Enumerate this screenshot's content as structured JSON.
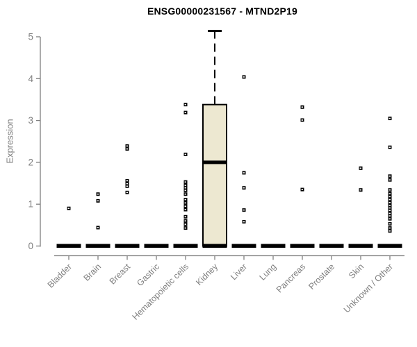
{
  "header": {
    "title": "ENSG00000231567 - MTND2P19"
  },
  "chart_data": {
    "type": "boxplot",
    "title": "ENSG00000231567 - MTND2P19",
    "xlabel": "",
    "ylabel": "Expression",
    "ylim": [
      0,
      5.2
    ],
    "yticks": [
      0,
      1,
      2,
      3,
      4,
      5
    ],
    "grid": false,
    "legend": "none",
    "categories": [
      "Bladder",
      "Brain",
      "Breast",
      "Gastric",
      "Hematopoietic cells",
      "Kidney",
      "Liver",
      "Lung",
      "Pancreas",
      "Prostate",
      "Skin",
      "Unknown / Other"
    ],
    "boxes": [
      {
        "category": "Bladder",
        "q1": 0,
        "median": 0,
        "q3": 0,
        "whisker_low": 0,
        "whisker_high": 0,
        "points": [
          0.9
        ]
      },
      {
        "category": "Brain",
        "q1": 0,
        "median": 0,
        "q3": 0,
        "whisker_low": 0,
        "whisker_high": 0,
        "points": [
          1.24,
          1.08,
          0.44
        ]
      },
      {
        "category": "Breast",
        "q1": 0,
        "median": 0,
        "q3": 0,
        "whisker_low": 0,
        "whisker_high": 0,
        "points": [
          2.39,
          2.32,
          1.56,
          1.49,
          1.43,
          1.28
        ]
      },
      {
        "category": "Gastric",
        "q1": 0,
        "median": 0,
        "q3": 0,
        "whisker_low": 0,
        "whisker_high": 0,
        "points": []
      },
      {
        "category": "Hematopoietic cells",
        "q1": 0,
        "median": 0,
        "q3": 0,
        "whisker_low": 0,
        "whisker_high": 0,
        "points": [
          3.38,
          3.19,
          2.19,
          1.53,
          1.45,
          1.39,
          1.33,
          1.24,
          1.11,
          1.03,
          0.95,
          0.87,
          0.7,
          0.6,
          0.52,
          0.43
        ]
      },
      {
        "category": "Kidney",
        "q1": 0,
        "median": 2.0,
        "q3": 3.38,
        "whisker_low": 0,
        "whisker_high": 5.14,
        "points": []
      },
      {
        "category": "Liver",
        "q1": 0,
        "median": 0,
        "q3": 0,
        "whisker_low": 0,
        "whisker_high": 0,
        "points": [
          4.04,
          1.75,
          1.39,
          0.86,
          0.58
        ]
      },
      {
        "category": "Lung",
        "q1": 0,
        "median": 0,
        "q3": 0,
        "whisker_low": 0,
        "whisker_high": 0,
        "points": []
      },
      {
        "category": "Pancreas",
        "q1": 0,
        "median": 0,
        "q3": 0,
        "whisker_low": 0,
        "whisker_high": 0,
        "points": [
          3.32,
          3.01,
          1.35
        ]
      },
      {
        "category": "Prostate",
        "q1": 0,
        "median": 0,
        "q3": 0,
        "whisker_low": 0,
        "whisker_high": 0,
        "points": []
      },
      {
        "category": "Skin",
        "q1": 0,
        "median": 0,
        "q3": 0,
        "whisker_low": 0,
        "whisker_high": 0,
        "points": [
          1.86,
          1.34
        ]
      },
      {
        "category": "Unknown / Other",
        "q1": 0,
        "median": 0,
        "q3": 0,
        "whisker_low": 0,
        "whisker_high": 0,
        "points": [
          3.05,
          2.36,
          1.67,
          1.58,
          1.34,
          1.25,
          1.18,
          1.11,
          1.04,
          0.97,
          0.91,
          0.85,
          0.78,
          0.72,
          0.65,
          0.53,
          0.43,
          0.36
        ]
      }
    ],
    "colors": {
      "box_fill": "#ede8d1",
      "box_stroke": "#000000",
      "median": "#000000",
      "marker": "#000000",
      "marker_center": "#ffffff",
      "axis": "#7f7f7f",
      "tick_label": "#7f7f7f",
      "title": "#000000"
    }
  }
}
